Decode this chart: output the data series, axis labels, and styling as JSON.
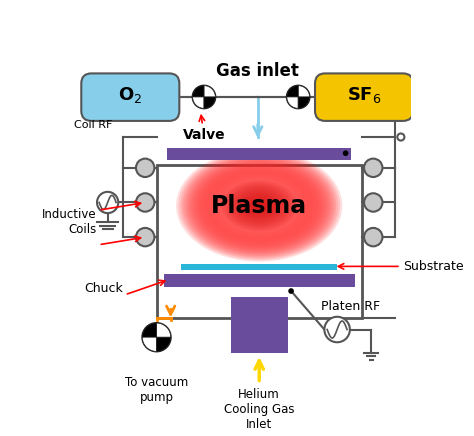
{
  "title": "Gas inlet",
  "o2_label": "O$_2$",
  "sf6_label": "SF$_6$",
  "plasma_label": "Plasma",
  "valve_label": "Valve",
  "coil_rf_label": "Coil RF",
  "inductive_coils_label": "Inductive\nCoils",
  "chuck_label": "Chuck",
  "substrate_label": "Substrate",
  "platen_rf_label": "Platen RF",
  "vacuum_pump_label": "To vacuum\npump",
  "helium_label": "Helium\nCooling Gas\nInlet",
  "bg_color": "#ffffff",
  "purple_color": "#6a4c9c",
  "blue_substrate": "#29b6d8",
  "o2_color": "#87ceeb",
  "sf6_color": "#f5c400",
  "line_color": "#555555",
  "arrow_blue": "#87ceeb",
  "arrow_orange": "#ff8c00",
  "arrow_yellow": "#ffd700",
  "coil_fill": "#c8c8c8",
  "chamber_lw": 2.5,
  "fig_w": 4.74,
  "fig_h": 4.36,
  "dpi": 100
}
